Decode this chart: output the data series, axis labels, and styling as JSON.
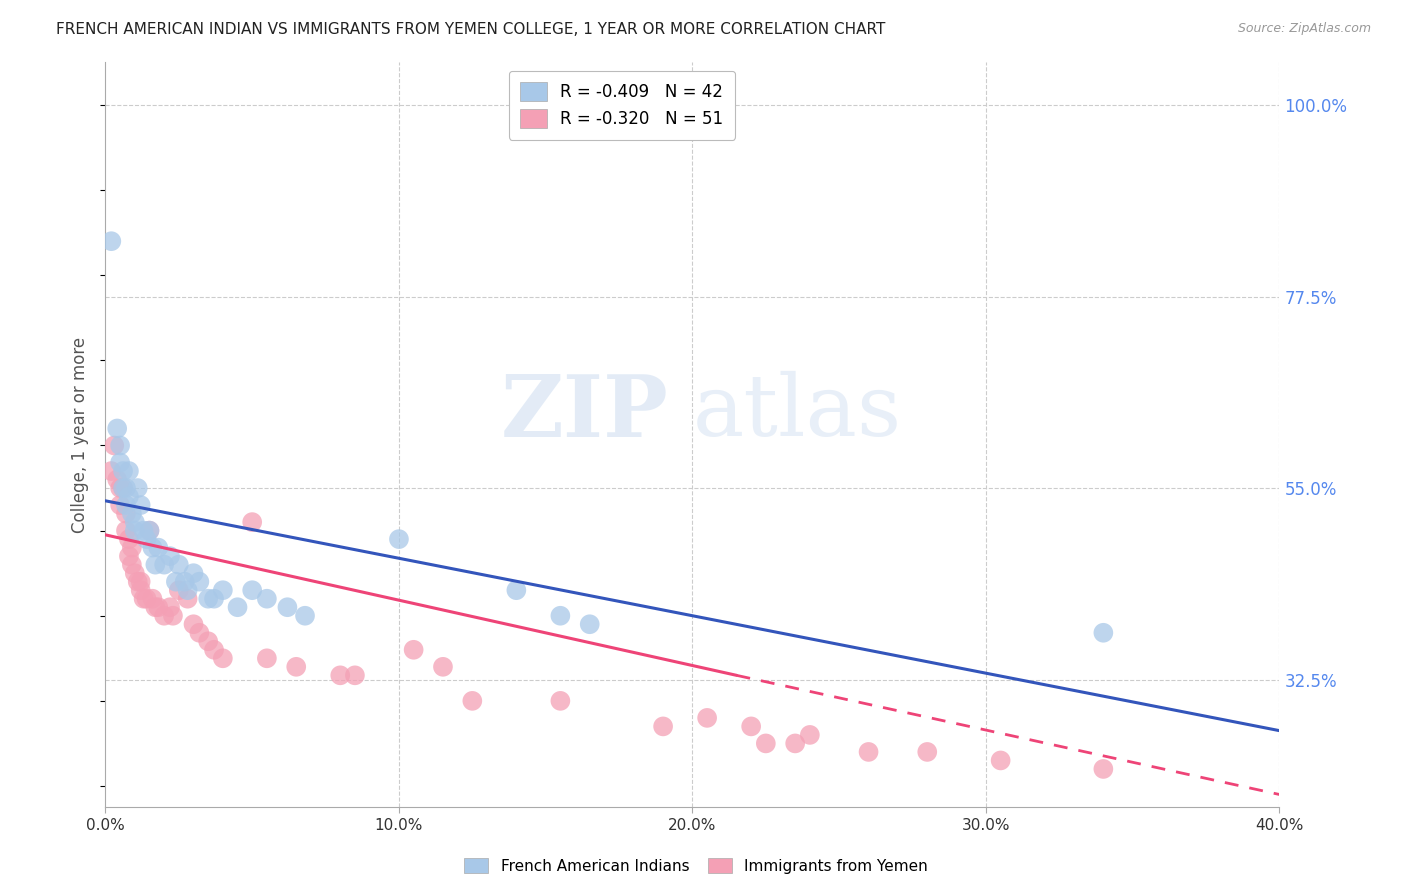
{
  "title": "FRENCH AMERICAN INDIAN VS IMMIGRANTS FROM YEMEN COLLEGE, 1 YEAR OR MORE CORRELATION CHART",
  "source": "Source: ZipAtlas.com",
  "ylabel": "College, 1 year or more",
  "xmin": 0.0,
  "xmax": 0.4,
  "ymin": 0.175,
  "ymax": 1.05,
  "right_yticks": [
    1.0,
    0.775,
    0.55,
    0.325
  ],
  "right_yticklabels": [
    "100.0%",
    "77.5%",
    "55.0%",
    "32.5%"
  ],
  "xticks": [
    0.0,
    0.1,
    0.2,
    0.3,
    0.4
  ],
  "xticklabels": [
    "0.0%",
    "10.0%",
    "20.0%",
    "30.0%",
    "40.0%"
  ],
  "legend_entries": [
    {
      "label": "R = -0.409   N = 42",
      "color": "#a8c8e8"
    },
    {
      "label": "R = -0.320   N = 51",
      "color": "#f4a0b5"
    }
  ],
  "legend_labels_bottom": [
    "French American Indians",
    "Immigrants from Yemen"
  ],
  "blue_color": "#a8c8e8",
  "pink_color": "#f4a0b5",
  "blue_line_color": "#3355bb",
  "pink_line_color": "#ee4477",
  "blue_scatter": [
    [
      0.002,
      0.84
    ],
    [
      0.004,
      0.62
    ],
    [
      0.005,
      0.6
    ],
    [
      0.005,
      0.58
    ],
    [
      0.006,
      0.57
    ],
    [
      0.006,
      0.55
    ],
    [
      0.007,
      0.55
    ],
    [
      0.007,
      0.53
    ],
    [
      0.008,
      0.57
    ],
    [
      0.008,
      0.54
    ],
    [
      0.009,
      0.52
    ],
    [
      0.01,
      0.51
    ],
    [
      0.01,
      0.5
    ],
    [
      0.011,
      0.55
    ],
    [
      0.012,
      0.53
    ],
    [
      0.013,
      0.5
    ],
    [
      0.014,
      0.49
    ],
    [
      0.015,
      0.5
    ],
    [
      0.016,
      0.48
    ],
    [
      0.017,
      0.46
    ],
    [
      0.018,
      0.48
    ],
    [
      0.02,
      0.46
    ],
    [
      0.022,
      0.47
    ],
    [
      0.024,
      0.44
    ],
    [
      0.025,
      0.46
    ],
    [
      0.027,
      0.44
    ],
    [
      0.028,
      0.43
    ],
    [
      0.03,
      0.45
    ],
    [
      0.032,
      0.44
    ],
    [
      0.035,
      0.42
    ],
    [
      0.037,
      0.42
    ],
    [
      0.04,
      0.43
    ],
    [
      0.045,
      0.41
    ],
    [
      0.05,
      0.43
    ],
    [
      0.055,
      0.42
    ],
    [
      0.062,
      0.41
    ],
    [
      0.068,
      0.4
    ],
    [
      0.1,
      0.49
    ],
    [
      0.14,
      0.43
    ],
    [
      0.155,
      0.4
    ],
    [
      0.165,
      0.39
    ],
    [
      0.34,
      0.38
    ]
  ],
  "pink_scatter": [
    [
      0.002,
      0.57
    ],
    [
      0.003,
      0.6
    ],
    [
      0.004,
      0.56
    ],
    [
      0.005,
      0.55
    ],
    [
      0.005,
      0.53
    ],
    [
      0.006,
      0.55
    ],
    [
      0.007,
      0.52
    ],
    [
      0.007,
      0.5
    ],
    [
      0.008,
      0.49
    ],
    [
      0.008,
      0.47
    ],
    [
      0.009,
      0.48
    ],
    [
      0.009,
      0.46
    ],
    [
      0.01,
      0.45
    ],
    [
      0.011,
      0.44
    ],
    [
      0.012,
      0.44
    ],
    [
      0.012,
      0.43
    ],
    [
      0.013,
      0.42
    ],
    [
      0.014,
      0.42
    ],
    [
      0.015,
      0.5
    ],
    [
      0.016,
      0.42
    ],
    [
      0.017,
      0.41
    ],
    [
      0.018,
      0.41
    ],
    [
      0.02,
      0.4
    ],
    [
      0.022,
      0.41
    ],
    [
      0.023,
      0.4
    ],
    [
      0.025,
      0.43
    ],
    [
      0.028,
      0.42
    ],
    [
      0.03,
      0.39
    ],
    [
      0.032,
      0.38
    ],
    [
      0.035,
      0.37
    ],
    [
      0.037,
      0.36
    ],
    [
      0.04,
      0.35
    ],
    [
      0.05,
      0.51
    ],
    [
      0.055,
      0.35
    ],
    [
      0.065,
      0.34
    ],
    [
      0.08,
      0.33
    ],
    [
      0.085,
      0.33
    ],
    [
      0.105,
      0.36
    ],
    [
      0.115,
      0.34
    ],
    [
      0.125,
      0.3
    ],
    [
      0.155,
      0.3
    ],
    [
      0.19,
      0.27
    ],
    [
      0.205,
      0.28
    ],
    [
      0.22,
      0.27
    ],
    [
      0.225,
      0.25
    ],
    [
      0.235,
      0.25
    ],
    [
      0.24,
      0.26
    ],
    [
      0.26,
      0.24
    ],
    [
      0.28,
      0.24
    ],
    [
      0.305,
      0.23
    ],
    [
      0.34,
      0.22
    ]
  ],
  "blue_line": {
    "x0": 0.0,
    "y0": 0.535,
    "x1": 0.4,
    "y1": 0.265
  },
  "pink_line_solid": {
    "x0": 0.0,
    "y0": 0.495,
    "x1": 0.215,
    "y1": 0.33
  },
  "pink_line_dash": {
    "x0": 0.215,
    "y0": 0.33,
    "x1": 0.4,
    "y1": 0.19
  },
  "watermark_zip": "ZIP",
  "watermark_atlas": "atlas",
  "background_color": "#ffffff",
  "grid_color": "#cccccc",
  "title_fontsize": 11,
  "right_tick_color": "#5588ee"
}
